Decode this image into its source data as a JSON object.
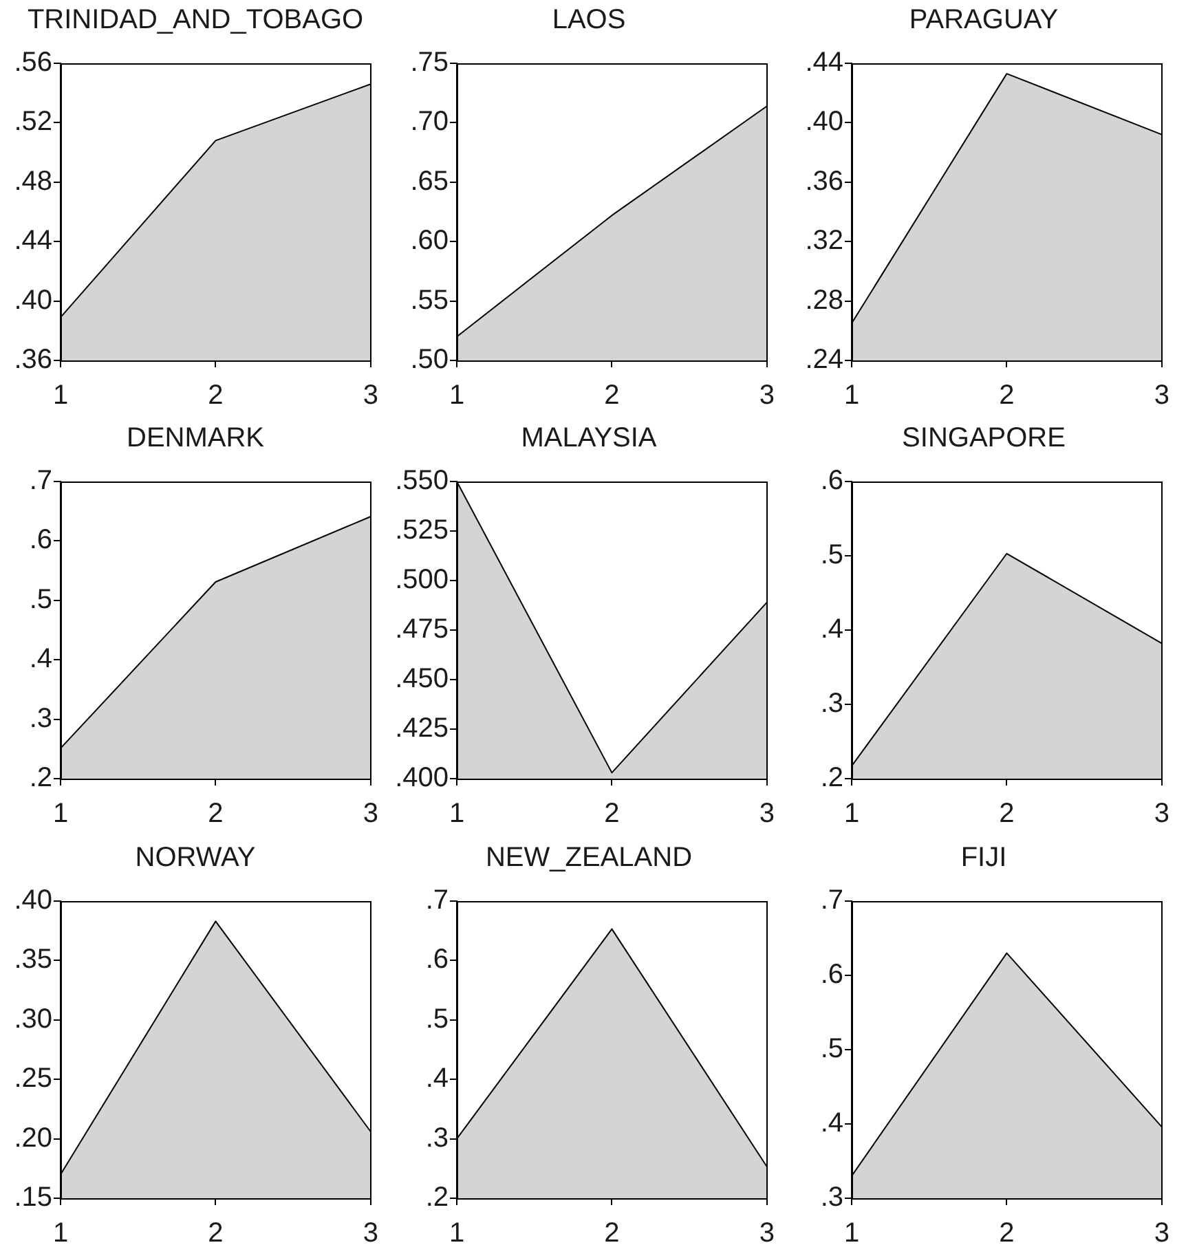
{
  "chart_data": [
    {
      "type": "area",
      "title": "TRINIDAD_AND_TOBAGO",
      "categories": [
        "1",
        "2",
        "3"
      ],
      "values": [
        0.389,
        0.508,
        0.546
      ],
      "color": "#d3d4d6",
      "ylim": [
        0.36,
        0.56
      ],
      "yticks": [
        {
          "value": 0.36,
          "label": ".36"
        },
        {
          "value": 0.4,
          "label": ".40"
        },
        {
          "value": 0.44,
          "label": ".44"
        },
        {
          "value": 0.48,
          "label": ".48"
        },
        {
          "value": 0.52,
          "label": ".52"
        },
        {
          "value": 0.56,
          "label": ".56"
        }
      ]
    },
    {
      "type": "area",
      "title": "LAOS",
      "categories": [
        "1",
        "2",
        "3"
      ],
      "values": [
        0.52,
        0.622,
        0.714
      ],
      "color": "#d3d4d6",
      "ylim": [
        0.5,
        0.75
      ],
      "yticks": [
        {
          "value": 0.5,
          "label": ".50"
        },
        {
          "value": 0.55,
          "label": ".55"
        },
        {
          "value": 0.6,
          "label": ".60"
        },
        {
          "value": 0.65,
          "label": ".65"
        },
        {
          "value": 0.7,
          "label": ".70"
        },
        {
          "value": 0.75,
          "label": ".75"
        }
      ]
    },
    {
      "type": "area",
      "title": "PARAGUAY",
      "categories": [
        "1",
        "2",
        "3"
      ],
      "values": [
        0.265,
        0.433,
        0.392
      ],
      "color": "#d3d4d6",
      "ylim": [
        0.24,
        0.44
      ],
      "yticks": [
        {
          "value": 0.24,
          "label": ".24"
        },
        {
          "value": 0.28,
          "label": ".28"
        },
        {
          "value": 0.32,
          "label": ".32"
        },
        {
          "value": 0.36,
          "label": ".36"
        },
        {
          "value": 0.4,
          "label": ".40"
        },
        {
          "value": 0.44,
          "label": ".44"
        }
      ]
    },
    {
      "type": "area",
      "title": "DENMARK",
      "categories": [
        "1",
        "2",
        "3"
      ],
      "values": [
        0.251,
        0.531,
        0.641
      ],
      "color": "#d3d4d6",
      "ylim": [
        0.2,
        0.7
      ],
      "yticks": [
        {
          "value": 0.2,
          "label": ".2"
        },
        {
          "value": 0.3,
          "label": ".3"
        },
        {
          "value": 0.4,
          "label": ".4"
        },
        {
          "value": 0.5,
          "label": ".5"
        },
        {
          "value": 0.6,
          "label": ".6"
        },
        {
          "value": 0.7,
          "label": ".7"
        }
      ]
    },
    {
      "type": "area",
      "title": "MALAYSIA",
      "categories": [
        "1",
        "2",
        "3"
      ],
      "values": [
        0.55,
        0.403,
        0.489
      ],
      "color": "#d3d4d6",
      "ylim": [
        0.4,
        0.55
      ],
      "yticks": [
        {
          "value": 0.4,
          "label": ".400"
        },
        {
          "value": 0.425,
          "label": ".425"
        },
        {
          "value": 0.45,
          "label": ".450"
        },
        {
          "value": 0.475,
          "label": ".475"
        },
        {
          "value": 0.5,
          "label": ".500"
        },
        {
          "value": 0.525,
          "label": ".525"
        },
        {
          "value": 0.55,
          "label": ".550"
        }
      ]
    },
    {
      "type": "area",
      "title": "SINGAPORE",
      "categories": [
        "1",
        "2",
        "3"
      ],
      "values": [
        0.217,
        0.503,
        0.382
      ],
      "color": "#d3d4d6",
      "ylim": [
        0.2,
        0.6
      ],
      "yticks": [
        {
          "value": 0.2,
          "label": ".2"
        },
        {
          "value": 0.3,
          "label": ".3"
        },
        {
          "value": 0.4,
          "label": ".4"
        },
        {
          "value": 0.5,
          "label": ".5"
        },
        {
          "value": 0.6,
          "label": ".6"
        }
      ]
    },
    {
      "type": "area",
      "title": "NORWAY",
      "categories": [
        "1",
        "2",
        "3"
      ],
      "values": [
        0.17,
        0.383,
        0.206
      ],
      "color": "#d3d4d6",
      "ylim": [
        0.15,
        0.4
      ],
      "yticks": [
        {
          "value": 0.15,
          "label": ".15"
        },
        {
          "value": 0.2,
          "label": ".20"
        },
        {
          "value": 0.25,
          "label": ".25"
        },
        {
          "value": 0.3,
          "label": ".30"
        },
        {
          "value": 0.35,
          "label": ".35"
        },
        {
          "value": 0.4,
          "label": ".40"
        }
      ]
    },
    {
      "type": "area",
      "title": "NEW_ZEALAND",
      "categories": [
        "1",
        "2",
        "3"
      ],
      "values": [
        0.3,
        0.653,
        0.253
      ],
      "color": "#d3d4d6",
      "ylim": [
        0.2,
        0.7
      ],
      "yticks": [
        {
          "value": 0.2,
          "label": ".2"
        },
        {
          "value": 0.3,
          "label": ".3"
        },
        {
          "value": 0.4,
          "label": ".4"
        },
        {
          "value": 0.5,
          "label": ".5"
        },
        {
          "value": 0.6,
          "label": ".6"
        },
        {
          "value": 0.7,
          "label": ".7"
        }
      ]
    },
    {
      "type": "area",
      "title": "FIJI",
      "categories": [
        "1",
        "2",
        "3"
      ],
      "values": [
        0.33,
        0.63,
        0.396
      ],
      "color": "#d3d4d6",
      "ylim": [
        0.3,
        0.7
      ],
      "yticks": [
        {
          "value": 0.3,
          "label": ".3"
        },
        {
          "value": 0.4,
          "label": ".4"
        },
        {
          "value": 0.5,
          "label": ".5"
        },
        {
          "value": 0.6,
          "label": ".6"
        },
        {
          "value": 0.7,
          "label": ".7"
        }
      ]
    }
  ]
}
